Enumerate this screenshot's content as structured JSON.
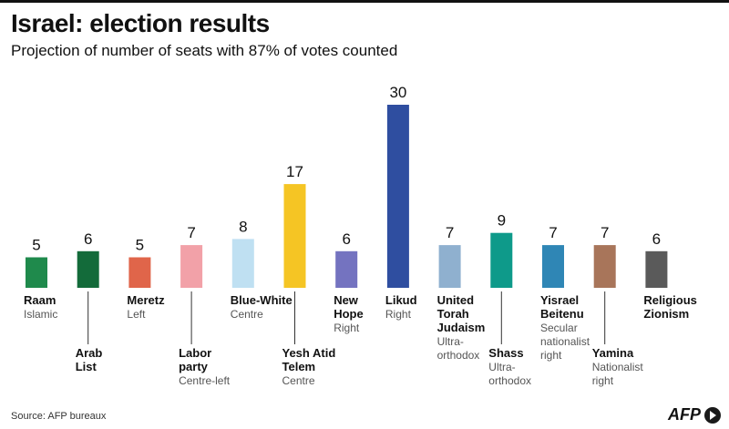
{
  "title": "Israel: election results",
  "subtitle": "Projection of number of seats with 87% of votes counted",
  "source": "Source: AFP bureaux",
  "logo_text": "AFP",
  "chart_data": {
    "type": "bar",
    "categories": [
      "Raam",
      "Arab List",
      "Meretz",
      "Labor party",
      "Blue-White",
      "Yesh Atid Telem",
      "New Hope",
      "Likud",
      "United Torah Judaism",
      "Shass",
      "Yisrael Beitenu",
      "Yamina",
      "Religious Zionism"
    ],
    "values": [
      5,
      6,
      5,
      7,
      8,
      17,
      6,
      30,
      7,
      9,
      7,
      7,
      6
    ],
    "ylim": [
      0,
      30
    ],
    "grid": false,
    "parties": [
      {
        "name": [
          "Raam"
        ],
        "desc": [
          "Islamic"
        ],
        "value": 5,
        "color": "#1f8a4c",
        "stagger": 0
      },
      {
        "name": [
          "Arab",
          "List"
        ],
        "desc": [],
        "value": 6,
        "color": "#136b3a",
        "stagger": 1
      },
      {
        "name": [
          "Meretz"
        ],
        "desc": [
          "Left"
        ],
        "value": 5,
        "color": "#e0654a",
        "stagger": 0
      },
      {
        "name": [
          "Labor",
          "party"
        ],
        "desc": [
          "Centre-left"
        ],
        "value": 7,
        "color": "#f2a1a8",
        "stagger": 1
      },
      {
        "name": [
          "Blue-White"
        ],
        "desc": [
          "Centre"
        ],
        "value": 8,
        "color": "#bfe0f2",
        "stagger": 0
      },
      {
        "name": [
          "Yesh Atid",
          "Telem"
        ],
        "desc": [
          "Centre"
        ],
        "value": 17,
        "color": "#f5c524",
        "stagger": 1
      },
      {
        "name": [
          "New",
          "Hope"
        ],
        "desc": [
          "Right"
        ],
        "value": 6,
        "color": "#7473c0",
        "stagger": 0
      },
      {
        "name": [
          "Likud"
        ],
        "desc": [
          "Right"
        ],
        "value": 30,
        "color": "#2f4ea0",
        "stagger": 0
      },
      {
        "name": [
          "United",
          "Torah",
          "Judaism"
        ],
        "desc": [
          "Ultra-",
          "orthodox"
        ],
        "value": 7,
        "color": "#8fb0cf",
        "stagger": 0
      },
      {
        "name": [
          "Shass"
        ],
        "desc": [
          "Ultra-",
          "orthodox"
        ],
        "value": 9,
        "color": "#0e9a8a",
        "stagger": 1
      },
      {
        "name": [
          "Yisrael",
          "Beitenu"
        ],
        "desc": [
          "Secular",
          "nationalist",
          "right"
        ],
        "value": 7,
        "color": "#2f86b5",
        "stagger": 0
      },
      {
        "name": [
          "Yamina"
        ],
        "desc": [
          "Nationalist",
          "right"
        ],
        "value": 7,
        "color": "#a8755a",
        "stagger": 1
      },
      {
        "name": [
          "Religious",
          "Zionism"
        ],
        "desc": [],
        "value": 6,
        "color": "#5a5a5a",
        "stagger": 0
      }
    ]
  }
}
